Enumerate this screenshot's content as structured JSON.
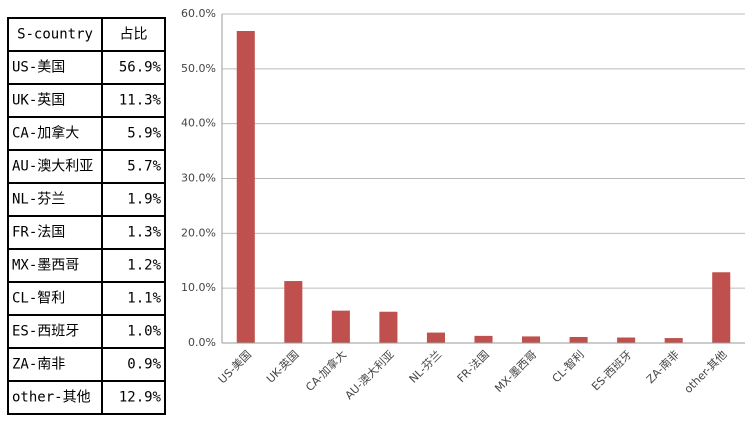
{
  "table": {
    "header": [
      "S-country",
      "占比"
    ],
    "rows": [
      [
        "US-美国",
        "56.9%"
      ],
      [
        "UK-英国",
        "11.3%"
      ],
      [
        "CA-加拿大",
        "5.9%"
      ],
      [
        "AU-澳大利亚",
        "5.7%"
      ],
      [
        "NL-芬兰",
        "1.9%"
      ],
      [
        "FR-法国",
        "1.3%"
      ],
      [
        "MX-墨西哥",
        "1.2%"
      ],
      [
        "CL-智利",
        "1.1%"
      ],
      [
        "ES-西班牙",
        "1.0%"
      ],
      [
        "ZA-南非",
        "0.9%"
      ],
      [
        "other-其他",
        "12.9%"
      ]
    ]
  },
  "chart_data": {
    "type": "bar",
    "categories": [
      "US-美国",
      "UK-英国",
      "CA-加拿大",
      "AU-澳大利亚",
      "NL-芬兰",
      "FR-法国",
      "MX-墨西哥",
      "CL-智利",
      "ES-西班牙",
      "ZA-南非",
      "other-其他"
    ],
    "values": [
      56.9,
      11.3,
      5.9,
      5.7,
      1.9,
      1.3,
      1.2,
      1.1,
      1.0,
      0.9,
      12.9
    ],
    "color": "#c0504d",
    "ylim": [
      0,
      60
    ],
    "yticks": [
      {
        "value": 0,
        "label": "0.0%"
      },
      {
        "value": 10,
        "label": "10.0%"
      },
      {
        "value": 20,
        "label": "20.0%"
      },
      {
        "value": 30,
        "label": "30.0%"
      },
      {
        "value": 40,
        "label": "40.0%"
      },
      {
        "value": 50,
        "label": "50.0%"
      },
      {
        "value": 60,
        "label": "60.0%"
      }
    ],
    "grid": true
  }
}
